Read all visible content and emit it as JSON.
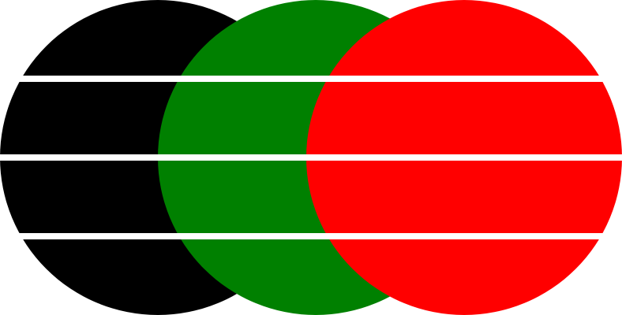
{
  "graphic": {
    "circles": [
      {
        "name": "black-circle",
        "color": "#000000"
      },
      {
        "name": "green-circle",
        "color": "#008000"
      },
      {
        "name": "red-circle",
        "color": "#ff0000"
      }
    ],
    "stripe_color": "#ffffff",
    "stripe_count": 3
  }
}
